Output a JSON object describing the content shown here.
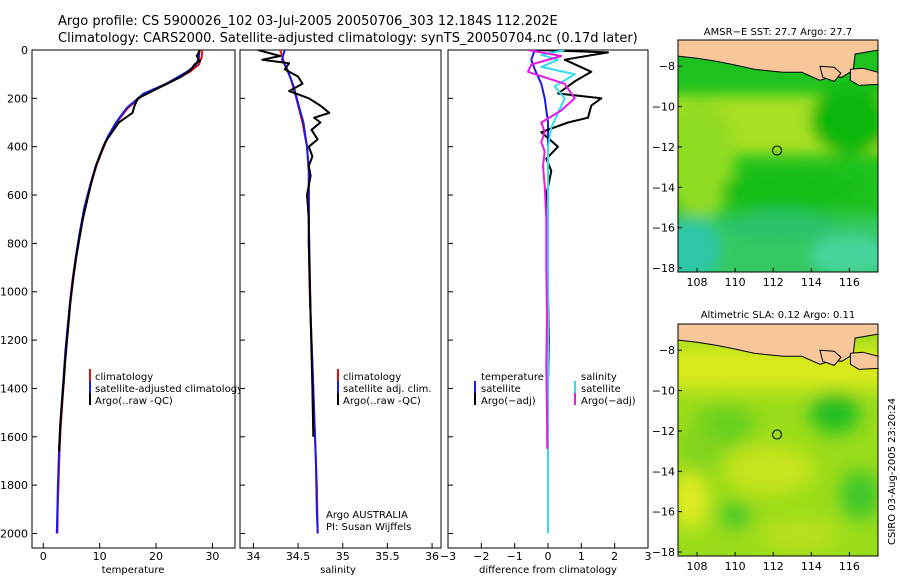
{
  "header": {
    "line1": "Argo profile: CS 5900026_102 03-Jul-2005 20050706_303 12.184S 112.202E",
    "line2": "Climatology: CARS2000. Satellite-adjusted climatology: synTS_20050704.nc (0.17d later)"
  },
  "credit": "CSIRO 03-Aug-2005 23:20:24",
  "colors": {
    "climatology": "#e01010",
    "satellite": "#1a1ae6",
    "argo": "#000000",
    "salinity": "#33ddee",
    "salinity_argo": "#e61ae6",
    "land": "#f7c79a"
  },
  "chart_data": [
    {
      "type": "line",
      "name": "temperature-panel",
      "xlabel": "temperature",
      "ylabel": "",
      "xlim": [
        -2,
        34
      ],
      "ylim": [
        2060,
        0
      ],
      "xticks": [
        0,
        10,
        20,
        30
      ],
      "xticklabels": [
        "0",
        "10",
        "20",
        "30"
      ],
      "yticks": [
        0,
        200,
        400,
        600,
        800,
        1000,
        1200,
        1400,
        1600,
        1800,
        2000
      ],
      "yticklabels": [
        "0",
        "200",
        "400",
        "600",
        "800",
        "1000",
        "1200",
        "1400",
        "1600",
        "1800",
        "2000"
      ],
      "legend": [
        "climatology",
        "satellite-adjusted climatology",
        "Argo(..raw -QC)"
      ],
      "series": [
        {
          "name": "climatology",
          "color": "#e01010",
          "points": [
            [
              28.2,
              0
            ],
            [
              28.1,
              30
            ],
            [
              27.6,
              60
            ],
            [
              26,
              90
            ],
            [
              22,
              140
            ],
            [
              18,
              180
            ],
            [
              15,
              240
            ],
            [
              13,
              300
            ],
            [
              11.5,
              360
            ],
            [
              10.4,
              420
            ],
            [
              9.4,
              480
            ],
            [
              8.4,
              560
            ],
            [
              7.4,
              650
            ],
            [
              6.6,
              750
            ],
            [
              5.9,
              850
            ],
            [
              5.3,
              950
            ],
            [
              4.8,
              1050
            ],
            [
              4.4,
              1150
            ],
            [
              4.0,
              1250
            ],
            [
              3.7,
              1350
            ],
            [
              3.4,
              1450
            ],
            [
              3.1,
              1550
            ],
            [
              2.9,
              1650
            ],
            [
              2.7,
              1800
            ],
            [
              2.55,
              1900
            ],
            [
              2.5,
              2000
            ]
          ]
        },
        {
          "name": "satellite",
          "color": "#1a1ae6",
          "points": [
            [
              27.7,
              0
            ],
            [
              27.6,
              30
            ],
            [
              27.1,
              60
            ],
            [
              25.5,
              90
            ],
            [
              21.8,
              140
            ],
            [
              17.8,
              180
            ],
            [
              14.8,
              240
            ],
            [
              12.9,
              300
            ],
            [
              11.4,
              360
            ],
            [
              10.3,
              420
            ],
            [
              9.3,
              480
            ],
            [
              8.3,
              560
            ],
            [
              7.3,
              650
            ],
            [
              6.5,
              750
            ],
            [
              5.8,
              850
            ],
            [
              5.2,
              950
            ],
            [
              4.7,
              1050
            ],
            [
              4.3,
              1150
            ],
            [
              3.9,
              1250
            ],
            [
              3.6,
              1350
            ],
            [
              3.3,
              1450
            ],
            [
              3.0,
              1550
            ],
            [
              2.8,
              1650
            ],
            [
              2.6,
              1800
            ],
            [
              2.5,
              1900
            ],
            [
              2.4,
              2000
            ]
          ]
        },
        {
          "name": "argo",
          "color": "#000000",
          "points": [
            [
              27.8,
              0
            ],
            [
              27.2,
              25
            ],
            [
              27.8,
              45
            ],
            [
              26.8,
              60
            ],
            [
              26.3,
              80
            ],
            [
              24.5,
              110
            ],
            [
              21,
              150
            ],
            [
              18.5,
              180
            ],
            [
              16.8,
              200
            ],
            [
              16.2,
              230
            ],
            [
              15.8,
              260
            ],
            [
              14.6,
              280
            ],
            [
              13.4,
              300
            ],
            [
              12.2,
              340
            ],
            [
              11,
              380
            ],
            [
              10.3,
              420
            ],
            [
              9.5,
              470
            ],
            [
              8.6,
              540
            ],
            [
              7.8,
              620
            ],
            [
              7.0,
              700
            ],
            [
              6.4,
              780
            ],
            [
              5.8,
              860
            ],
            [
              5.3,
              940
            ],
            [
              4.8,
              1040
            ],
            [
              4.5,
              1120
            ],
            [
              4.2,
              1200
            ],
            [
              3.9,
              1280
            ],
            [
              3.6,
              1380
            ],
            [
              3.3,
              1460
            ],
            [
              3.0,
              1560
            ],
            [
              2.8,
              1660
            ]
          ]
        }
      ]
    },
    {
      "type": "line",
      "name": "salinity-panel",
      "xlabel": "salinity",
      "xlim": [
        33.85,
        36.1
      ],
      "ylim": [
        2060,
        0
      ],
      "xticks": [
        34,
        34.5,
        35,
        35.5,
        36
      ],
      "xticklabels": [
        "34",
        "34.5",
        "35",
        "35.5",
        "36"
      ],
      "legend": [
        "climatology",
        "satellite adj. clim.",
        "Argo(..raw -QC)"
      ],
      "annotations": [
        "Argo AUSTRALIA",
        "PI: Susan Wijffels"
      ],
      "series": [
        {
          "name": "climatology",
          "color": "#e01010",
          "points": [
            [
              34.3,
              0
            ],
            [
              34.35,
              60
            ],
            [
              34.42,
              120
            ],
            [
              34.48,
              200
            ],
            [
              34.55,
              300
            ],
            [
              34.6,
              400
            ],
            [
              34.62,
              500
            ],
            [
              34.62,
              600
            ],
            [
              34.62,
              800
            ],
            [
              34.63,
              1000
            ],
            [
              34.65,
              1200
            ],
            [
              34.67,
              1400
            ],
            [
              34.69,
              1600
            ],
            [
              34.71,
              1800
            ],
            [
              34.72,
              2000
            ]
          ]
        },
        {
          "name": "satellite",
          "color": "#1a1ae6",
          "points": [
            [
              34.35,
              0
            ],
            [
              34.32,
              40
            ],
            [
              34.38,
              80
            ],
            [
              34.45,
              150
            ],
            [
              34.5,
              220
            ],
            [
              34.56,
              300
            ],
            [
              34.6,
              400
            ],
            [
              34.62,
              500
            ],
            [
              34.62,
              700
            ],
            [
              34.63,
              900
            ],
            [
              34.64,
              1100
            ],
            [
              34.66,
              1300
            ],
            [
              34.68,
              1500
            ],
            [
              34.7,
              1700
            ],
            [
              34.71,
              1900
            ],
            [
              34.72,
              2000
            ]
          ]
        },
        {
          "name": "argo",
          "color": "#000000",
          "points": [
            [
              34.05,
              0
            ],
            [
              34.3,
              25
            ],
            [
              34.1,
              40
            ],
            [
              34.4,
              55
            ],
            [
              34.35,
              80
            ],
            [
              34.5,
              110
            ],
            [
              34.55,
              140
            ],
            [
              34.4,
              170
            ],
            [
              34.62,
              200
            ],
            [
              34.75,
              230
            ],
            [
              34.85,
              260
            ],
            [
              34.68,
              280
            ],
            [
              34.75,
              300
            ],
            [
              34.65,
              330
            ],
            [
              34.72,
              370
            ],
            [
              34.62,
              400
            ],
            [
              34.66,
              440
            ],
            [
              34.62,
              480
            ],
            [
              34.64,
              520
            ],
            [
              34.6,
              600
            ],
            [
              34.62,
              700
            ],
            [
              34.62,
              800
            ],
            [
              34.63,
              950
            ],
            [
              34.64,
              1100
            ],
            [
              34.65,
              1250
            ],
            [
              34.66,
              1400
            ],
            [
              34.67,
              1600
            ]
          ]
        }
      ]
    },
    {
      "type": "line",
      "name": "difference-panel",
      "xlabel": "difference from climatology",
      "xlim": [
        -3,
        3
      ],
      "ylim": [
        2060,
        0
      ],
      "xticks": [
        -3,
        -2,
        -1,
        0,
        1,
        2,
        3
      ],
      "xticklabels": [
        "−3",
        "−2",
        "−1",
        "0",
        "1",
        "2",
        "3"
      ],
      "legend_left": {
        "title": "temperature",
        "items": [
          "satellite",
          "Argo(−adj)"
        ]
      },
      "legend_right": {
        "title": "salinity",
        "items": [
          "satellite",
          "Argo(−adj)"
        ]
      },
      "series": [
        {
          "name": "temperature-satellite",
          "color": "#1a1ae6",
          "points": [
            [
              -0.4,
              0
            ],
            [
              -0.5,
              40
            ],
            [
              -0.4,
              80
            ],
            [
              -0.2,
              140
            ],
            [
              -0.1,
              200
            ],
            [
              0,
              300
            ],
            [
              0,
              500
            ],
            [
              0,
              800
            ],
            [
              0,
              1200
            ],
            [
              0,
              1600
            ],
            [
              0,
              2000
            ]
          ]
        },
        {
          "name": "temperature-argo",
          "color": "#000000",
          "points": [
            [
              -0.3,
              0
            ],
            [
              1.8,
              10
            ],
            [
              0.5,
              40
            ],
            [
              1.3,
              90
            ],
            [
              0.8,
              130
            ],
            [
              0.3,
              180
            ],
            [
              1.6,
              200
            ],
            [
              1.3,
              230
            ],
            [
              1.2,
              280
            ],
            [
              0.6,
              300
            ],
            [
              -0.2,
              340
            ],
            [
              0.3,
              400
            ],
            [
              -0.05,
              450
            ],
            [
              0.1,
              500
            ],
            [
              -0.05,
              600
            ],
            [
              0,
              800
            ],
            [
              0,
              1000
            ],
            [
              0.02,
              1200
            ],
            [
              0,
              1400
            ],
            [
              0,
              1600
            ]
          ]
        },
        {
          "name": "salinity-satellite",
          "color": "#33ddee",
          "points": [
            [
              0.5,
              0
            ],
            [
              -0.2,
              20
            ],
            [
              0.3,
              40
            ],
            [
              -0.2,
              70
            ],
            [
              0.8,
              100
            ],
            [
              0.2,
              150
            ],
            [
              0.5,
              200
            ],
            [
              0.3,
              260
            ],
            [
              0.1,
              320
            ],
            [
              0,
              400
            ],
            [
              0,
              600
            ],
            [
              0,
              1000
            ],
            [
              0,
              1400
            ],
            [
              0,
              1800
            ],
            [
              0,
              2000
            ]
          ]
        },
        {
          "name": "salinity-argo",
          "color": "#e61ae6",
          "points": [
            [
              -0.6,
              0
            ],
            [
              0.4,
              25
            ],
            [
              -0.5,
              60
            ],
            [
              -0.6,
              90
            ],
            [
              0.5,
              140
            ],
            [
              0.8,
              200
            ],
            [
              0.4,
              250
            ],
            [
              -0.2,
              300
            ],
            [
              -0.1,
              340
            ],
            [
              -0.2,
              380
            ],
            [
              -0.1,
              420
            ],
            [
              -0.15,
              480
            ],
            [
              -0.1,
              560
            ],
            [
              -0.05,
              700
            ],
            [
              -0.05,
              900
            ],
            [
              -0.03,
              1100
            ],
            [
              -0.05,
              1300
            ],
            [
              -0.03,
              1500
            ],
            [
              -0.02,
              1650
            ]
          ]
        }
      ]
    },
    {
      "type": "heatmap",
      "name": "sst-map",
      "title": "AMSR−E SST: 27.7 Argo: 27.7",
      "xlim": [
        107,
        117.5
      ],
      "ylim": [
        -18.2,
        -6.7
      ],
      "xticks": [
        108,
        110,
        112,
        114,
        116
      ],
      "yticks": [
        -8,
        -10,
        -12,
        -14,
        -16,
        -18
      ],
      "marker": {
        "lon": 112.2,
        "lat": -12.18
      }
    },
    {
      "type": "heatmap",
      "name": "sla-map",
      "title": "Altimetric SLA: 0.12 Argo: 0.11",
      "xlim": [
        107,
        117.5
      ],
      "ylim": [
        -18.2,
        -6.7
      ],
      "xticks": [
        108,
        110,
        112,
        114,
        116
      ],
      "yticks": [
        -8,
        -10,
        -12,
        -14,
        -16,
        -18
      ],
      "marker": {
        "lon": 112.2,
        "lat": -12.18
      }
    }
  ]
}
